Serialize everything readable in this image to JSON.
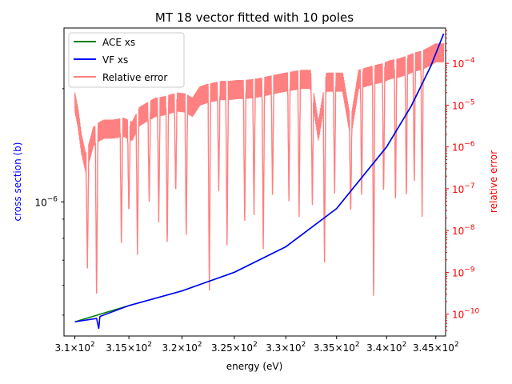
{
  "chart_data": {
    "type": "line",
    "title": "MT 18 vector fitted with 10 poles",
    "xlabel": "energy (eV)",
    "ylabel_left": "cross section (b)",
    "ylabel_right": "relative error",
    "left_axis_color": "#0000ff",
    "right_axis_color": "#ff0000",
    "x_scale": "log",
    "y_left_scale": "log",
    "y_right_scale": "log",
    "xlim": [
      309.0,
      346.0
    ],
    "ylim_left": [
      4.4e-07,
      2.9e-06
    ],
    "ylim_right": [
      3e-11,
      0.0007
    ],
    "x_ticks": [
      {
        "value": 310,
        "mant": "3.1",
        "base": "10",
        "exp": "2"
      },
      {
        "value": 315,
        "mant": "3.15",
        "base": "10",
        "exp": "2"
      },
      {
        "value": 320,
        "mant": "3.2",
        "base": "10",
        "exp": "2"
      },
      {
        "value": 325,
        "mant": "3.25",
        "base": "10",
        "exp": "2"
      },
      {
        "value": 330,
        "mant": "3.3",
        "base": "10",
        "exp": "2"
      },
      {
        "value": 335,
        "mant": "3.35",
        "base": "10",
        "exp": "2"
      },
      {
        "value": 340,
        "mant": "3.4",
        "base": "10",
        "exp": "2"
      },
      {
        "value": 345,
        "mant": "3.45",
        "base": "10",
        "exp": "2"
      }
    ],
    "y_left_ticks": [
      {
        "value": 1e-06,
        "base": "10",
        "exp": "−6"
      }
    ],
    "y_right_ticks": [
      {
        "value": 1e-10,
        "base": "10",
        "exp": "−10"
      },
      {
        "value": 1e-09,
        "base": "10",
        "exp": "−9"
      },
      {
        "value": 1e-08,
        "base": "10",
        "exp": "−8"
      },
      {
        "value": 1e-07,
        "base": "10",
        "exp": "−7"
      },
      {
        "value": 1e-06,
        "base": "10",
        "exp": "−6"
      },
      {
        "value": 1e-05,
        "base": "10",
        "exp": "−5"
      },
      {
        "value": 0.0001,
        "base": "10",
        "exp": "−4"
      }
    ],
    "legend_position": "top-left",
    "series": [
      {
        "name": "ACE xs",
        "color": "#008000",
        "axis": "left",
        "x": [
          310.0,
          315.0,
          320.0,
          325.0,
          330.0,
          335.0,
          340.0,
          342.5,
          344.5,
          345.8
        ],
        "y": [
          4.8e-07,
          5.3e-07,
          5.8e-07,
          6.5e-07,
          7.6e-07,
          9.6e-07,
          1.4e-06,
          1.8e-06,
          2.3e-06,
          2.8e-06
        ]
      },
      {
        "name": "VF xs",
        "color": "#0000ff",
        "axis": "left",
        "x": [
          310.0,
          312.0,
          312.2,
          312.3,
          312.4,
          315.0,
          320.0,
          325.0,
          330.0,
          335.0,
          340.0,
          342.5,
          344.5,
          345.8
        ],
        "y": [
          4.8e-07,
          4.9e-07,
          4.6e-07,
          4.95e-07,
          4.97e-07,
          5.3e-07,
          5.8e-07,
          6.5e-07,
          7.6e-07,
          9.6e-07,
          1.4e-06,
          1.8e-06,
          2.3e-06,
          2.8e-06
        ]
      },
      {
        "name": "Relative error",
        "color": "#ff8080",
        "axis": "right",
        "envelope_x": [
          310.0,
          310.3,
          310.6,
          311.0,
          311.4,
          311.7,
          312.0,
          312.3,
          312.7,
          313.5,
          314.5,
          315.3,
          316.0,
          316.8,
          317.5,
          318.2,
          318.9,
          319.6,
          320.3,
          321.0,
          321.7,
          322.4,
          323.1,
          323.8,
          324.6,
          325.3,
          326.0,
          326.8,
          327.6,
          328.4,
          329.2,
          330.0,
          330.8,
          331.6,
          332.4,
          333.2,
          334.0,
          334.8,
          335.6,
          336.4,
          337.2,
          338.0,
          338.8,
          339.6,
          340.4,
          341.2,
          342.0,
          342.8,
          343.6,
          344.4,
          345.0,
          345.8
        ],
        "envelope_y": [
          2e-05,
          8e-06,
          2e-06,
          7e-07,
          1.5e-06,
          3e-06,
          3.5e-06,
          4e-06,
          4.5e-06,
          4.5e-06,
          5e-06,
          4e-06,
          9e-06,
          1.2e-05,
          1.5e-05,
          1.6e-05,
          1.8e-05,
          2e-05,
          1.9e-05,
          1.5e-05,
          2.8e-05,
          3.2e-05,
          3.5e-05,
          3.8e-05,
          3.8e-05,
          4e-05,
          4e-05,
          4.2e-05,
          4.5e-05,
          5e-05,
          5.5e-05,
          6e-05,
          6.5e-05,
          7e-05,
          7e-05,
          4e-06,
          6e-05,
          6e-05,
          6e-05,
          4.5e-06,
          7e-05,
          8e-05,
          9e-05,
          0.0001,
          0.00012,
          0.00013,
          0.00015,
          0.00018,
          0.0002,
          0.00025,
          0.0003,
          0.0003
        ],
        "dips_x": [
          311.15,
          312.0,
          314.3,
          315.0,
          315.8,
          316.9,
          317.8,
          318.6,
          319.4,
          320.4,
          322.6,
          323.5,
          324.3,
          326.0,
          326.9,
          327.8,
          328.7,
          330.3,
          331.3,
          332.6,
          333.8,
          334.8,
          336.4,
          337.5,
          338.7,
          339.7,
          340.9,
          342.0,
          342.8,
          343.6
        ],
        "dips_y": [
          1.2e-09,
          2e-10,
          4e-09,
          2e-08,
          2e-09,
          4e-08,
          1.5e-08,
          3e-09,
          6e-08,
          5e-09,
          2e-10,
          8e-08,
          3e-09,
          1e-08,
          2e-08,
          3e-09,
          5e-08,
          4e-08,
          2e-08,
          3e-08,
          1e-09,
          6e-08,
          2e-08,
          4e-08,
          1e-10,
          5e-08,
          3e-08,
          4e-08,
          1e-07,
          2e-08
        ]
      }
    ]
  }
}
